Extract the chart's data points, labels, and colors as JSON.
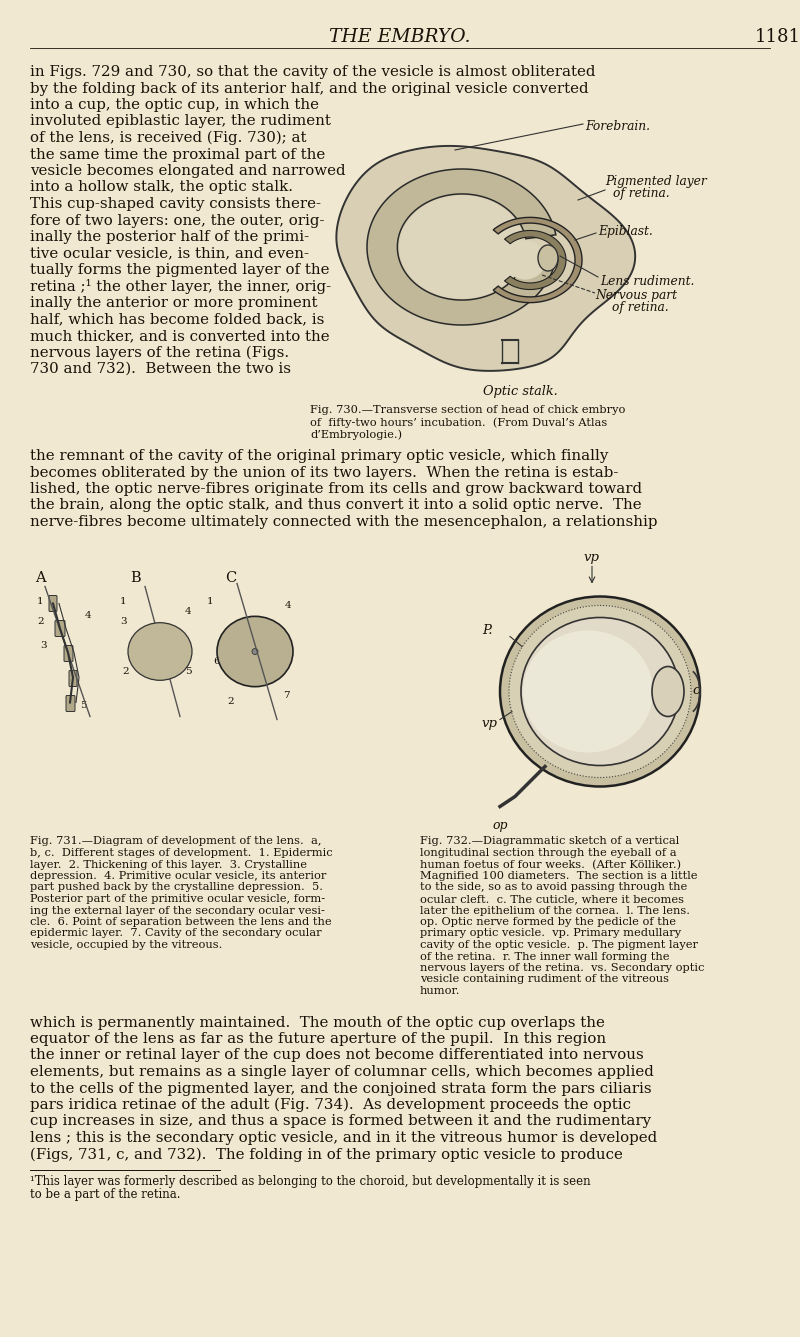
{
  "bg_color": "#f0e8d0",
  "page_title": "THE EMBRYO.",
  "page_number": "1181",
  "para1_full_lines": [
    "in Figs. 729 and 730, so that the cavity of the vesicle is almost obliterated",
    "by the folding back of its anterior half, and the original vesicle converted"
  ],
  "para1_left_lines": [
    "into a cup, the optic cup, in which the",
    "involuted epiblastic layer, the rudiment",
    "of the lens, is received (Fig. 730); at",
    "the same time the proximal part of the",
    "vesicle becomes elongated and narrowed",
    "into a hollow stalk, the optic stalk.",
    "This cup-shaped cavity consists there-",
    "fore of two layers: one, the outer, orig-",
    "inally the posterior half of the primi-",
    "tive ocular vesicle, is thin, and even-",
    "tually forms the pigmented layer of the",
    "retina ;¹ the other layer, the inner, orig-",
    "inally the anterior or more prominent",
    "half, which has become folded back, is",
    "much thicker, and is converted into the",
    "nervous layers of the retina (Figs.",
    "730 and 732).  Between the two is"
  ],
  "para2_lines": [
    "the remnant of the cavity of the original primary optic vesicle, which finally",
    "becomes obliterated by the union of its two layers.  When the retina is estab-",
    "lished, the optic nerve-fibres originate from its cells and grow backward toward",
    "the brain, along the optic stalk, and thus convert it into a solid optic nerve.  The",
    "nerve-fibres become ultimately connected with the mesencephalon, a relationship"
  ],
  "para3_lines": [
    "which is permanently maintained.  The mouth of the optic cup overlaps the",
    "equator of the lens as far as the future aperture of the pupil.  In this region",
    "the inner or retinal layer of the cup does not become differentiated into nervous",
    "elements, but remains as a single layer of columnar cells, which becomes applied",
    "to the cells of the pigmented layer, and the conjoined strata form the pars ciliaris",
    "pars iridica retinae of the adult (Fig. 734).  As development proceeds the optic",
    "cup increases in size, and thus a space is formed between it and the rudimentary",
    "lens ; this is the secondary optic vesicle, and in it the vitreous humor is developed",
    "(Figs, 731, c, and 732).  The folding in of the primary optic vesicle to produce"
  ],
  "fig730_caption_lines": [
    "Fig. 730.—Transverse section of head of chick embryo",
    "of  fifty-two hours’ incubation.  (From Duval’s Atlas",
    "d’Embryologie.)"
  ],
  "fig731_caption_lines": [
    "Fig. 731.—Diagram of development of the lens.  a,",
    "b, c.  Different stages of development.  1. Epidermic",
    "layer.  2. Thickening of this layer.  3. Crystalline",
    "depression.  4. Primitive ocular vesicle, its anterior",
    "part pushed back by the crystalline depression.  5.",
    "Posterior part of the primitive ocular vesicle, form-",
    "ing the external layer of the secondary ocular vesi-",
    "cle.  6. Point of separation between the lens and the",
    "epidermic layer.  7. Cavity of the secondary ocular",
    "vesicle, occupied by the vitreous."
  ],
  "fig732_caption_lines": [
    "Fig. 732.—Diagrammatic sketch of a vertical",
    "longitudinal section through the eyeball of a",
    "human foetus of four weeks.  (After Kölliker.)",
    "Magnified 100 diameters.  The section is a little",
    "to the side, so as to avoid passing through the",
    "ocular cleft.  c. The cuticle, where it becomes",
    "later the epithelium of the cornea.  l. The lens.",
    "op. Optic nerve formed by the pedicle of the",
    "primary optic vesicle.  vp. Primary medullary",
    "cavity of the optic vesicle.  p. The pigment layer",
    "of the retina.  r. The inner wall forming the",
    "nervous layers of the retina.  vs. Secondary optic",
    "vesicle containing rudiment of the vitreous",
    "humor."
  ],
  "footnote_lines": [
    "¹This layer was formerly described as belonging to the choroid, but developmentally it is seen",
    "to be a part of the retina."
  ],
  "label_forebrain": "Forebrain.",
  "label_pigmented": "Pigmented layer",
  "label_pigmented2": "of retina.",
  "label_epiblast": "Epiblast.",
  "label_lens": "Lens rudiment.",
  "label_nervous": "Nervous part",
  "label_nervous2": "of retina.",
  "label_optic_stalk": "Optic stalk."
}
